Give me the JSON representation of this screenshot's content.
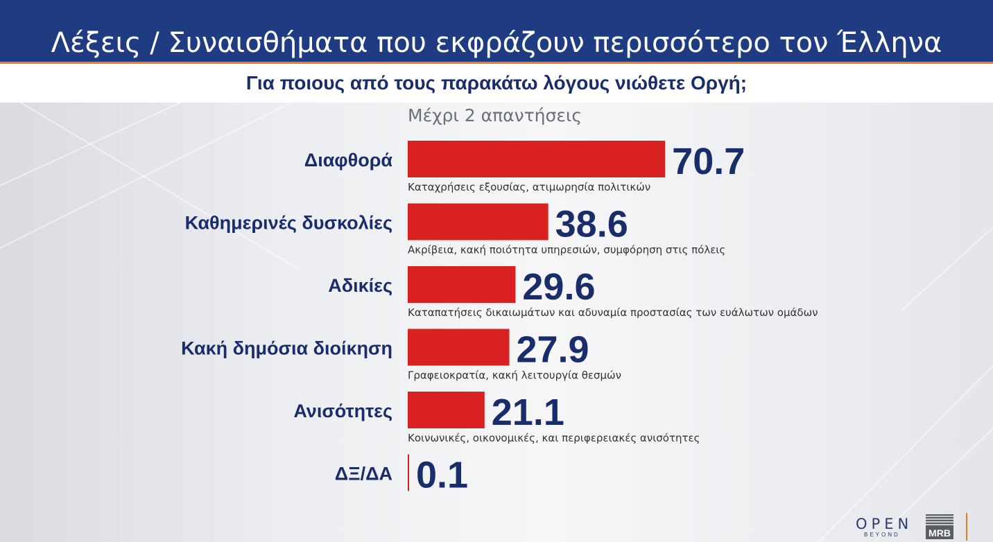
{
  "header": {
    "title": "Λέξεις / Συναισθήματα που εκφράζουν περισσότερο τον Έλληνα"
  },
  "subheader": {
    "question": "Για ποιους από τους παρακάτω λόγους νιώθετε Οργή;"
  },
  "note": "Μέχρι 2 απαντήσεις",
  "colors": {
    "bar": "#d92121",
    "value": "#1a2d6b",
    "label": "#1a2d6b",
    "description": "#333333",
    "header_bg": "#1f3b82",
    "header_accent": "#f07a24"
  },
  "chart_data": {
    "type": "bar",
    "orientation": "horizontal",
    "categories": [
      "Διαφθορά",
      "Καθημερινές δυσκολίες",
      "Αδικίες",
      "Κακή δημόσια διοίκηση",
      "Ανισότητες",
      "ΔΞ/ΔΑ"
    ],
    "values": [
      70.7,
      38.6,
      29.6,
      27.9,
      21.1,
      0.1
    ],
    "descriptions": [
      "Καταχρήσεις εξουσίας, ατιμωρησία πολιτικών",
      "Ακρίβεια, κακή ποιότητα υπηρεσιών, συμφόρηση στις πόλεις",
      "Καταπατήσεις δικαιωμάτων και αδυναμία προστασίας των ευάλωτων ομάδων",
      "Γραφειοκρατία, κακή λειτουργία θεσμών",
      "Κοινωνικές, οικονομικές, και περιφερειακές ανισότητες",
      ""
    ],
    "value_labels": [
      "70.7",
      "38.6",
      "29.6",
      "27.9",
      "21.1",
      "0.1"
    ],
    "xlim": [
      0,
      100
    ],
    "grid": false,
    "legend": "none"
  },
  "logos": {
    "open": "OPEN",
    "open_sub": "BEYOND",
    "mrb": "MRB"
  }
}
